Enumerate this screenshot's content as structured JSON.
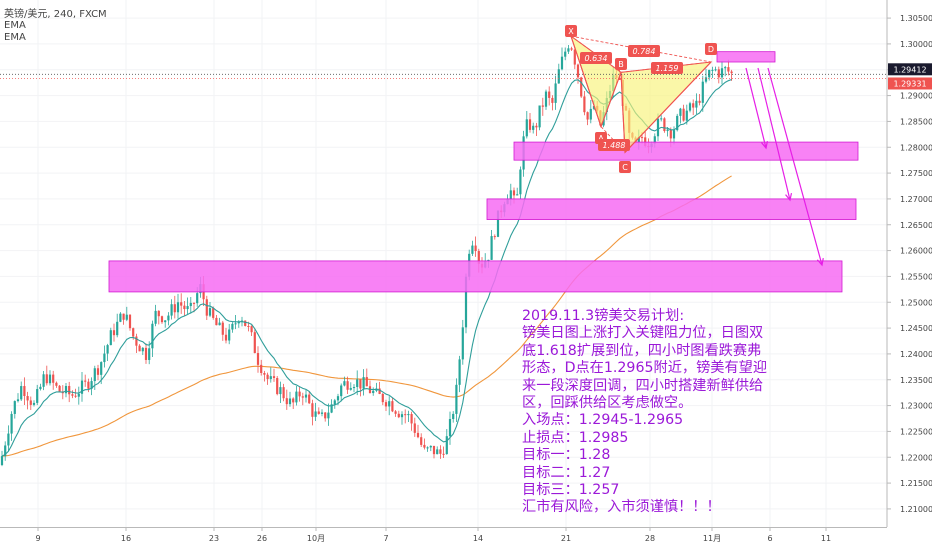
{
  "header": {
    "symbol": "英镑/美元",
    "timeframe": "240",
    "exchange": "FXCM",
    "indicator_1": "EMA",
    "indicator_2": "EMA"
  },
  "price_axis": {
    "ticks": [
      "1.30500",
      "1.30000",
      "1.29500",
      "1.29000",
      "1.28500",
      "1.28000",
      "1.27500",
      "1.27000",
      "1.26500",
      "1.26000",
      "1.25500",
      "1.25000",
      "1.24500",
      "1.24000",
      "1.23500",
      "1.23000",
      "1.22500",
      "1.22000",
      "1.21500",
      "1.21000"
    ],
    "badge_top": {
      "value": "1.29412",
      "color": "#1a1a2e"
    },
    "badge_bottom": {
      "value": "1.29331",
      "color": "#ef5350"
    }
  },
  "time_axis": {
    "ticks": [
      "9",
      "16",
      "23",
      "26",
      "10月",
      "7",
      "14",
      "21",
      "28",
      "11月",
      "6",
      "11"
    ]
  },
  "pattern_labels": {
    "points": [
      "X",
      "A",
      "B",
      "C",
      "D"
    ],
    "ratios": [
      "0.784",
      "0.634",
      "1.159",
      "1.488"
    ]
  },
  "plan": {
    "title": "2019.11.3镑美交易计划:",
    "body": "镑美日图上涨打入关键阻力位，日图双底1.618扩展到位，四小时图看跌赛弗形态，D点在1.2965附近，镑美有望迎来一段深度回调，四小时搭建新鲜供给区，回踩供给区考虑做空。",
    "entry": "入场点：1.2945-1.2965",
    "stop": "止损点：1.2985",
    "target1": "目标一：1.28",
    "target2": "目标二：1.27",
    "target3": "目标三：1.257",
    "warning": "汇市有风险，入市须谨慎！！！"
  },
  "colors": {
    "up": "#26a69a",
    "down": "#ef5350",
    "ema_fast": "#2f9e9a",
    "ema_slow": "#f0963c",
    "zone_fill": "#f76cf3",
    "zone_stroke": "#d21ad2",
    "pattern_fill": "#f7f27a",
    "pattern_stroke": "#ef5350",
    "arrow": "#e61ee6",
    "text_purple": "#9b19d8"
  },
  "chart_data": {
    "type": "candlestick",
    "timeframe": "4H",
    "ylim": [
      1.2065,
      1.3085
    ],
    "ohlc_sampled": [
      {
        "t": "9",
        "close": 1.23
      },
      {
        "t": "16",
        "close": 1.245
      },
      {
        "t": "20",
        "close": 1.252
      },
      {
        "t": "23",
        "close": 1.247
      },
      {
        "t": "26",
        "close": 1.238
      },
      {
        "t": "10月",
        "close": 1.229
      },
      {
        "t": "7",
        "close": 1.223
      },
      {
        "t": "10",
        "close": 1.239
      },
      {
        "t": "14",
        "close": 1.265
      },
      {
        "t": "17",
        "close": 1.284
      },
      {
        "t": "21",
        "close": 1.298
      },
      {
        "t": "24",
        "close": 1.286
      },
      {
        "t": "28",
        "close": 1.284
      },
      {
        "t": "11月",
        "close": 1.2941
      }
    ],
    "supply_demand_zones": [
      {
        "from": 1.2965,
        "to": 1.2985
      },
      {
        "from": 1.2775,
        "to": 1.281
      },
      {
        "from": 1.266,
        "to": 1.27
      },
      {
        "from": 1.252,
        "to": 1.258
      }
    ],
    "harmonic_pattern": {
      "name": "Shark / 赛弗",
      "points": {
        "X": 1.3015,
        "A": 1.283,
        "B": 1.2945,
        "C": 1.279,
        "D": 1.296
      },
      "ratios": {
        "AB/XA": 0.634,
        "BC": 1.488,
        "CD": 1.159,
        "XD": 0.784
      }
    },
    "targets": [
      1.28,
      1.27,
      1.257
    ]
  }
}
